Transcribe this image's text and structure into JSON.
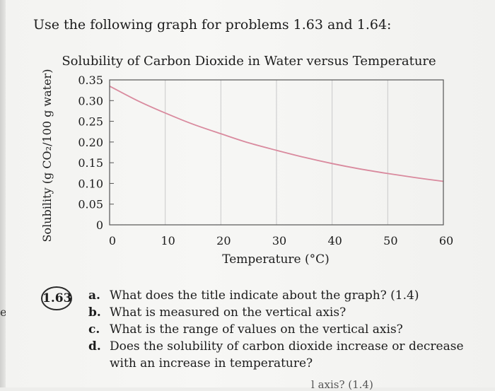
{
  "intro": "Use the following graph for problems 1.63 and 1.64:",
  "margin_fragment": "e.",
  "chart_data": {
    "type": "line",
    "title": "Solubility of Carbon Dioxide in Water versus Temperature",
    "xlabel": "Temperature (°C)",
    "ylabel": "Solubility (g CO₂/100 g water)",
    "xlim": [
      0,
      60
    ],
    "ylim": [
      0,
      0.35
    ],
    "x_ticks": [
      "0",
      "10",
      "20",
      "30",
      "40",
      "50",
      "60"
    ],
    "y_ticks": [
      "0",
      "0.05",
      "0.10",
      "0.15",
      "0.20",
      "0.25",
      "0.30",
      "0.35"
    ],
    "grid": true,
    "series": [
      {
        "color": "#d98a9e",
        "x": [
          0,
          5,
          10,
          15,
          20,
          25,
          30,
          35,
          40,
          45,
          50,
          55,
          60
        ],
        "y": [
          0.335,
          0.3,
          0.27,
          0.243,
          0.22,
          0.198,
          0.18,
          0.163,
          0.148,
          0.135,
          0.124,
          0.114,
          0.105
        ]
      }
    ]
  },
  "question": {
    "number": "1.63",
    "items": [
      {
        "letter": "a.",
        "text": "What does the title indicate about the graph? (1.4)"
      },
      {
        "letter": "b.",
        "text": "What is measured on the vertical axis?"
      },
      {
        "letter": "c.",
        "text": "What is the range of values on the vertical axis?"
      },
      {
        "letter": "d.",
        "text": "Does the solubility of carbon dioxide increase or decrease"
      }
    ],
    "continuation": "with an increase in temperature?"
  },
  "cutoff_text": "l axis? (1.4)"
}
